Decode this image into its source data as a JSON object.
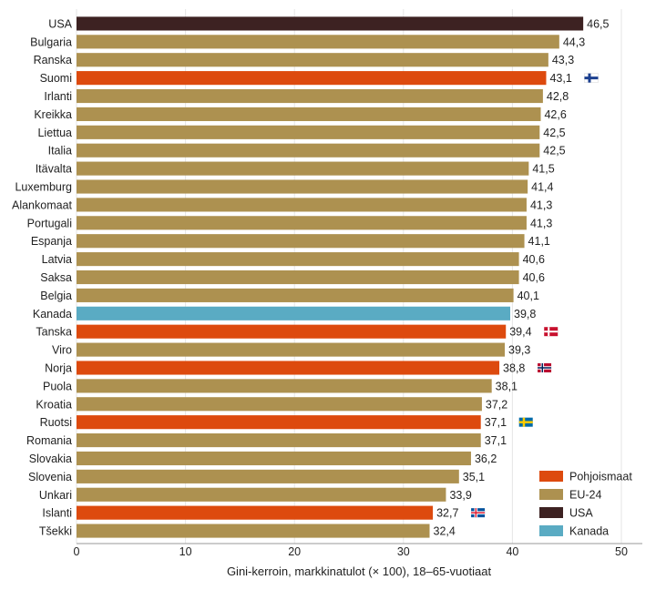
{
  "chart_data": {
    "type": "bar",
    "orientation": "horizontal",
    "xlabel": "Gini-kerroin, markkinatulot (× 100), 18–65-vuotiaat",
    "xlim": [
      0,
      50
    ],
    "xticks": [
      0,
      10,
      20,
      30,
      40,
      50
    ],
    "grid": true,
    "legend_position": "bottom-right",
    "groups": {
      "nordic": {
        "label": "Pohjoismaat",
        "color": "#dd4a0e"
      },
      "eu": {
        "label": "EU-24",
        "color": "#ad9150"
      },
      "usa": {
        "label": "USA",
        "color": "#3d2222"
      },
      "canada": {
        "label": "Kanada",
        "color": "#5aabc3"
      }
    },
    "legend_order": [
      "nordic",
      "eu",
      "usa",
      "canada"
    ],
    "categories": [
      "USA",
      "Bulgaria",
      "Ranska",
      "Suomi",
      "Irlanti",
      "Kreikka",
      "Liettua",
      "Italia",
      "Itävalta",
      "Luxemburg",
      "Alankomaat",
      "Portugali",
      "Espanja",
      "Latvia",
      "Saksa",
      "Belgia",
      "Kanada",
      "Tanska",
      "Viro",
      "Norja",
      "Puola",
      "Kroatia",
      "Ruotsi",
      "Romania",
      "Slovakia",
      "Slovenia",
      "Unkari",
      "Islanti",
      "Tšekki"
    ],
    "values": [
      46.5,
      44.3,
      43.3,
      43.1,
      42.8,
      42.6,
      42.5,
      42.5,
      41.5,
      41.4,
      41.3,
      41.3,
      41.1,
      40.6,
      40.6,
      40.1,
      39.8,
      39.4,
      39.3,
      38.8,
      38.1,
      37.2,
      37.1,
      37.1,
      36.2,
      35.1,
      33.9,
      32.7,
      32.4
    ],
    "value_labels": [
      "46,5",
      "44,3",
      "43,3",
      "43,1",
      "42,8",
      "42,6",
      "42,5",
      "42,5",
      "41,5",
      "41,4",
      "41,3",
      "41,3",
      "41,1",
      "40,6",
      "40,6",
      "40,1",
      "39,8",
      "39,4",
      "39,3",
      "38,8",
      "38,1",
      "37,2",
      "37,1",
      "37,1",
      "36,2",
      "35,1",
      "33,9",
      "32,7",
      "32,4"
    ],
    "bar_groups": [
      "usa",
      "eu",
      "eu",
      "nordic",
      "eu",
      "eu",
      "eu",
      "eu",
      "eu",
      "eu",
      "eu",
      "eu",
      "eu",
      "eu",
      "eu",
      "eu",
      "canada",
      "nordic",
      "eu",
      "nordic",
      "eu",
      "eu",
      "nordic",
      "eu",
      "eu",
      "eu",
      "eu",
      "nordic",
      "eu"
    ],
    "flags": {
      "Suomi": "fi",
      "Tanska": "dk",
      "Norja": "no",
      "Ruotsi": "se",
      "Islanti": "is"
    }
  }
}
